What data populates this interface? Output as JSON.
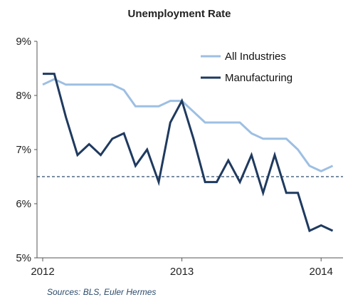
{
  "chart_data": {
    "type": "line",
    "title": "Unemployment Rate",
    "xlabel": "",
    "ylabel": "",
    "x_ticks": [
      "2012",
      "2013",
      "2014"
    ],
    "y_ticks": [
      "9%",
      "8%",
      "7%",
      "6%",
      "5%"
    ],
    "ylim": [
      5,
      9
    ],
    "x_start": "2012-01",
    "x_end": "2014-02",
    "reference_line": 6.5,
    "series": [
      {
        "name": "All Industries",
        "color": "#9dbfe3",
        "values": [
          8.2,
          8.3,
          8.2,
          8.2,
          8.2,
          8.2,
          8.2,
          8.1,
          7.8,
          7.8,
          7.8,
          7.9,
          7.9,
          7.7,
          7.5,
          7.5,
          7.5,
          7.5,
          7.3,
          7.2,
          7.2,
          7.2,
          7.0,
          6.7,
          6.6,
          6.7
        ]
      },
      {
        "name": "Manufacturing",
        "color": "#1f3a5f",
        "values": [
          8.4,
          8.4,
          7.6,
          6.9,
          7.1,
          6.9,
          7.2,
          7.3,
          6.7,
          7.0,
          6.4,
          7.5,
          7.9,
          7.2,
          6.4,
          6.4,
          6.8,
          6.4,
          6.9,
          6.2,
          6.9,
          6.2,
          6.2,
          5.5,
          5.6,
          5.5
        ]
      }
    ],
    "legend_position": "top-right",
    "grid": false
  },
  "source_text": "Sources: BLS, Euler Hermes"
}
